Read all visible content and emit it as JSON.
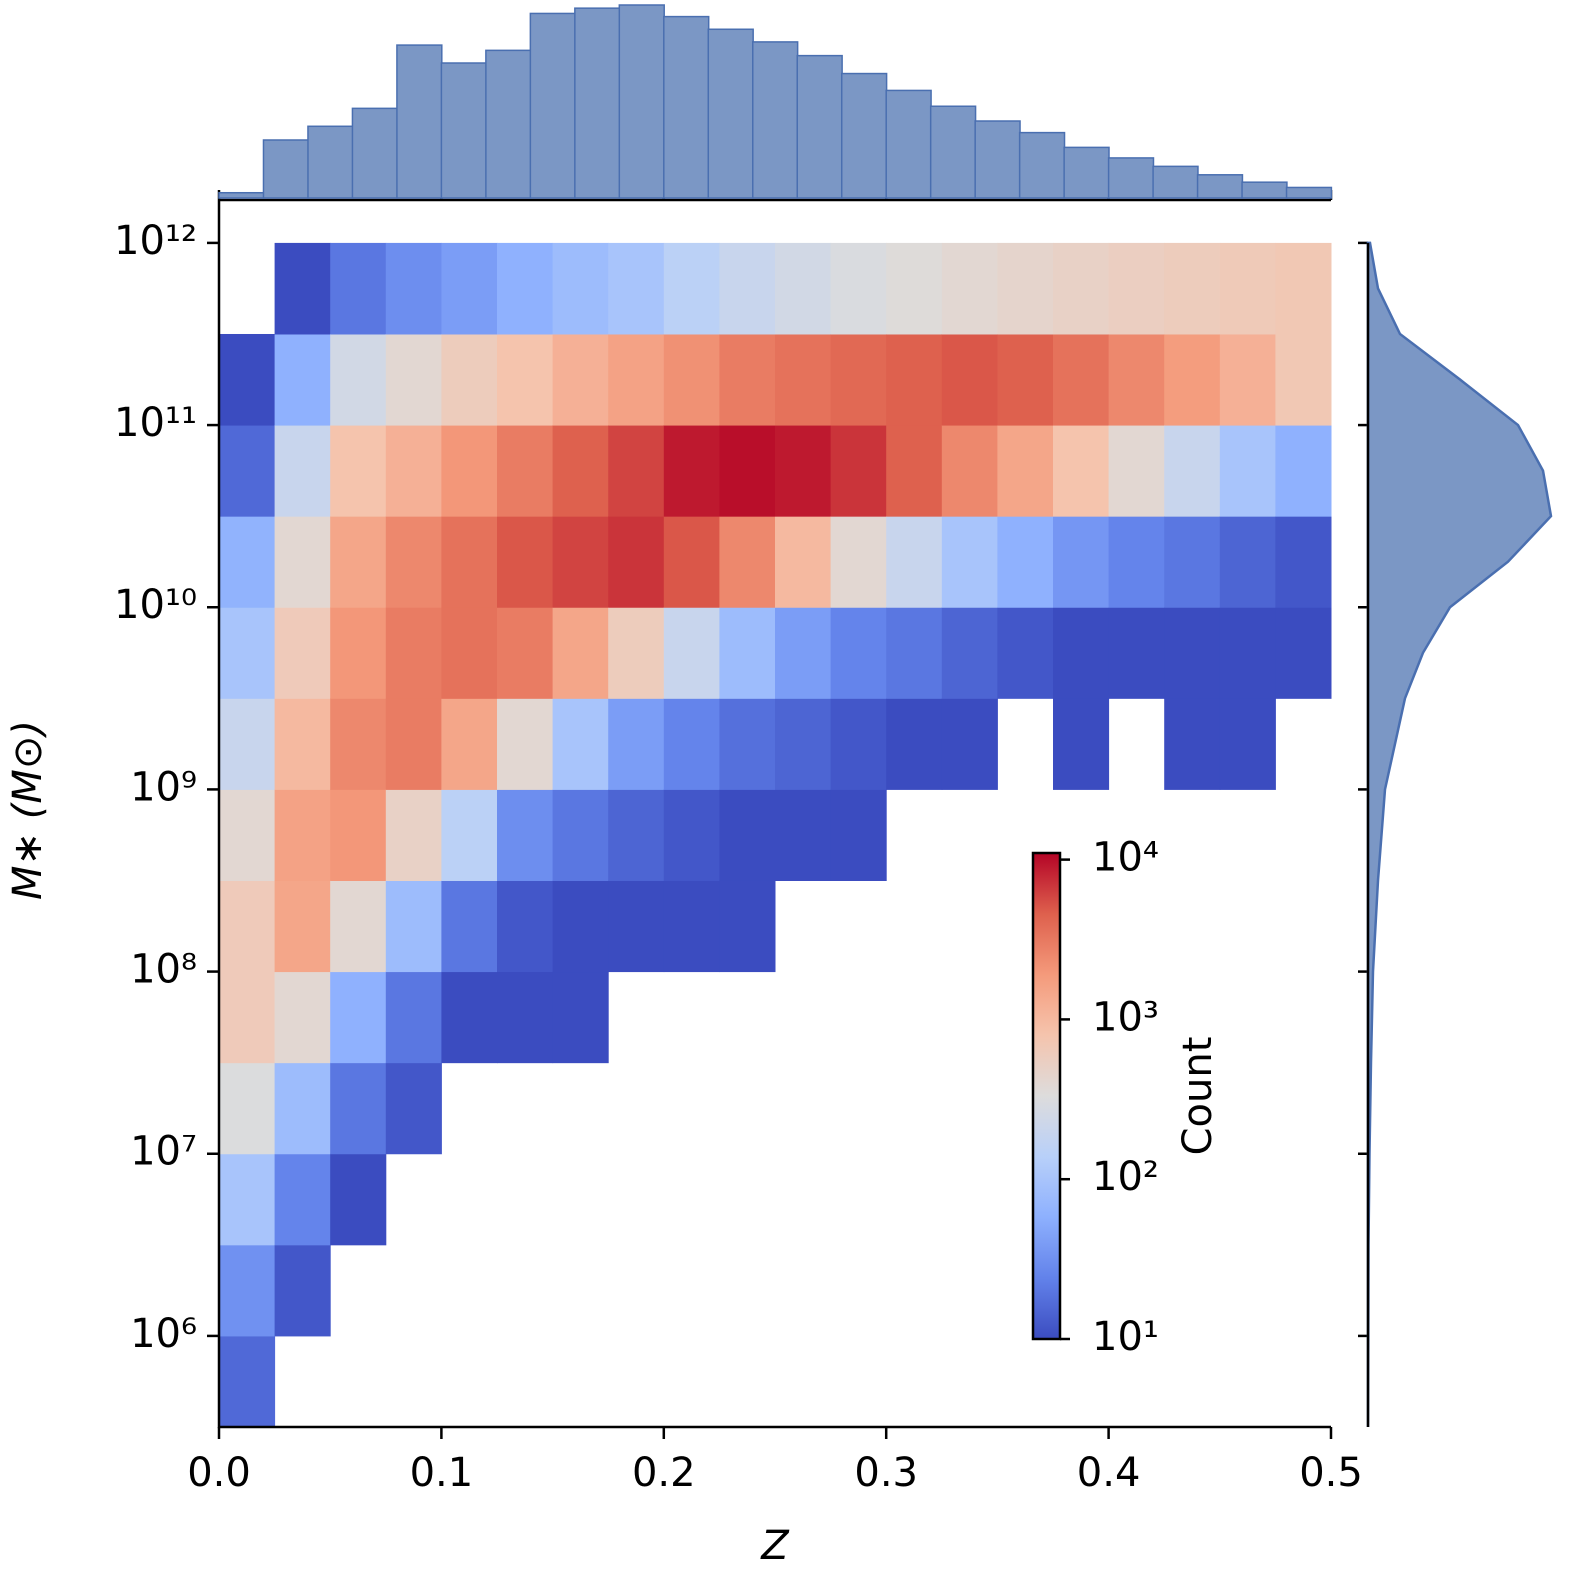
{
  "chart_data": {
    "type": "hist2d",
    "xlabel": "Z",
    "ylabel": "M∗ (M⊙)",
    "xlim": [
      0,
      0.5
    ],
    "ylim": [
      316228,
      1720000000000
    ],
    "yscale": "log",
    "xticks": [
      {
        "value": 0,
        "label": "0.0"
      },
      0.1,
      0.2,
      0.3,
      0.4,
      0.5
    ],
    "yticks": [
      {
        "value": 1000000,
        "label": "10⁶"
      },
      {
        "value": 10000000,
        "label": "10⁷"
      },
      {
        "value": 100000000,
        "label": "10⁸"
      },
      {
        "value": 1000000000,
        "label": "10⁹"
      },
      {
        "value": 10000000000,
        "label": "10¹⁰"
      },
      {
        "value": 100000000000,
        "label": "10¹¹"
      },
      {
        "value": 1000000000000,
        "label": "10¹²"
      }
    ],
    "xbins": [
      0,
      0.025,
      0.05,
      0.075,
      0.1,
      0.125,
      0.15,
      0.175,
      0.2,
      0.225,
      0.25,
      0.275,
      0.3,
      0.325,
      0.35,
      0.375,
      0.4,
      0.425,
      0.45,
      0.475,
      0.5
    ],
    "ybins": [
      316228,
      1000000,
      3162278,
      10000000,
      31622777,
      100000000,
      316227766,
      1000000000,
      3162277660,
      10000000000,
      31622776602,
      100000000000,
      316227766017,
      1000000000000
    ],
    "counts": [
      [
        16,
        32,
        100,
        320,
        630,
        630,
        400,
        200,
        100,
        63,
        16,
        8,
        0
      ],
      [
        0,
        12,
        25,
        80,
        400,
        1500,
        1600,
        1000,
        630,
        400,
        200,
        60,
        5
      ],
      [
        0,
        0,
        10,
        20,
        60,
        400,
        2000,
        2500,
        2000,
        1500,
        800,
        250,
        20
      ],
      [
        0,
        0,
        0,
        12,
        20,
        80,
        500,
        3000,
        3000,
        2500,
        1200,
        400,
        30
      ],
      [
        0,
        0,
        0,
        0,
        8,
        20,
        150,
        1500,
        3500,
        3500,
        2000,
        600,
        40
      ],
      [
        0,
        0,
        0,
        0,
        4,
        12,
        30,
        400,
        3000,
        5000,
        3000,
        800,
        60
      ],
      [
        0,
        0,
        0,
        0,
        2,
        10,
        20,
        100,
        1500,
        6000,
        4500,
        1200,
        80
      ],
      [
        0,
        0,
        0,
        0,
        0,
        6,
        15,
        40,
        600,
        7000,
        6000,
        1600,
        100
      ],
      [
        0,
        0,
        0,
        0,
        0,
        4,
        12,
        25,
        200,
        5000,
        9000,
        2200,
        150
      ],
      [
        0,
        0,
        0,
        0,
        0,
        2,
        10,
        18,
        80,
        2500,
        10000,
        3000,
        200
      ],
      [
        0,
        0,
        0,
        0,
        0,
        0,
        8,
        15,
        40,
        1000,
        9000,
        3500,
        250
      ],
      [
        0,
        0,
        0,
        0,
        0,
        0,
        3,
        12,
        25,
        400,
        7000,
        4000,
        300
      ],
      [
        0,
        0,
        0,
        0,
        0,
        0,
        0,
        4,
        20,
        200,
        4500,
        4500,
        350
      ],
      [
        0,
        0,
        0,
        0,
        0,
        0,
        0,
        2,
        15,
        100,
        2500,
        5000,
        400
      ],
      [
        0,
        0,
        0,
        0,
        0,
        0,
        0,
        0,
        12,
        60,
        1500,
        4500,
        450
      ],
      [
        0,
        0,
        0,
        0,
        0,
        0,
        0,
        1,
        10,
        35,
        800,
        3500,
        500
      ],
      [
        0,
        0,
        0,
        0,
        0,
        0,
        0,
        0,
        8,
        25,
        400,
        2500,
        550
      ],
      [
        0,
        0,
        0,
        0,
        0,
        0,
        0,
        1,
        6,
        20,
        200,
        1800,
        600
      ],
      [
        0,
        0,
        0,
        0,
        0,
        0,
        0,
        1,
        5,
        15,
        100,
        1200,
        650
      ],
      [
        0,
        0,
        0,
        0,
        0,
        0,
        0,
        0,
        4,
        12,
        60,
        700,
        700
      ]
    ],
    "colorbar": {
      "label": "Count",
      "scale": "log",
      "colormap": "coolwarm",
      "clim": [
        10,
        11000
      ],
      "ticks": [
        {
          "value": 10,
          "label": "10¹"
        },
        {
          "value": 100,
          "label": "10²"
        },
        {
          "value": 1000,
          "label": "10³"
        },
        {
          "value": 10000,
          "label": "10⁴"
        }
      ]
    },
    "top_marginal": {
      "type": "histogram",
      "color": "#7b97c5",
      "bins": [
        0,
        0.02,
        0.04,
        0.06,
        0.08,
        0.1,
        0.12,
        0.14,
        0.16,
        0.18,
        0.2,
        0.22,
        0.24,
        0.26,
        0.28,
        0.3,
        0.32,
        0.34,
        0.36,
        0.38,
        0.4,
        0.42,
        0.44,
        0.46,
        0.48,
        0.5
      ],
      "counts": [
        5,
        55,
        68,
        85,
        145,
        128,
        140,
        175,
        180,
        183,
        172,
        160,
        148,
        135,
        118,
        102,
        87,
        73,
        62,
        48,
        38,
        30,
        22,
        15,
        10
      ]
    },
    "right_marginal": {
      "type": "density",
      "color": "#7b97c5",
      "x": [
        316228,
        1000000,
        3162278,
        10000000,
        31622777,
        100000000,
        316227766,
        1000000000,
        3162277660,
        5623413252,
        10000000000,
        17782794100,
        31622776602,
        56234132519,
        100000000000,
        177827941004,
        316227766017,
        562341325190,
        1000000000000
      ],
      "values": [
        0,
        0.3,
        0.5,
        1.5,
        3,
        5,
        10,
        17,
        37,
        55,
        82,
        140,
        183,
        175,
        150,
        92,
        32,
        10,
        2
      ]
    }
  }
}
